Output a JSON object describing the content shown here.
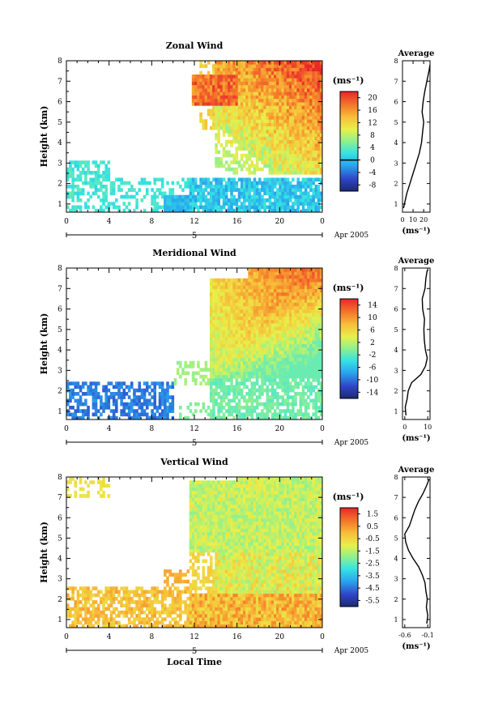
{
  "chart_data": [
    {
      "type": "heatmap",
      "title": "Zonal Wind",
      "ylabel": "Height (km)",
      "xlabel": "",
      "units": "(ms⁻¹)",
      "xlim": [
        0,
        24
      ],
      "ylim": [
        0.6,
        8
      ],
      "xticks": [
        "0",
        "4",
        "8",
        "12",
        "16",
        "20",
        "0"
      ],
      "yticks": [
        "1",
        "2",
        "3",
        "4",
        "5",
        "6",
        "7",
        "8"
      ],
      "date_axis": {
        "day": "5",
        "month_year": "Apr 2005"
      },
      "colorbar": {
        "labels": [
          "20",
          "16",
          "12",
          "8",
          "4",
          "0",
          "-4",
          "-8"
        ],
        "zero_line": "0",
        "range": [
          -10,
          22
        ]
      },
      "average_profile": {
        "title": "Average",
        "xlabel": "(ms⁻¹)",
        "xticks": [
          "0",
          "10",
          "20"
        ],
        "xlim": [
          0,
          26
        ],
        "yticks": [
          "1",
          "2",
          "3",
          "4",
          "5",
          "6",
          "7",
          "8"
        ],
        "heights": [
          0.8,
          1.5,
          2.0,
          2.5,
          3.0,
          3.5,
          4.0,
          4.5,
          5.0,
          5.5,
          6.0,
          6.5,
          7.0,
          7.5,
          7.8
        ],
        "values": [
          1,
          4,
          7,
          10,
          13,
          16,
          18,
          19,
          20,
          18.5,
          19.5,
          21,
          23,
          25,
          26
        ]
      }
    },
    {
      "type": "heatmap",
      "title": "Meridional Wind",
      "ylabel": "Height (km)",
      "xlabel": "",
      "units": "(ms⁻¹)",
      "xlim": [
        0,
        24
      ],
      "ylim": [
        0.6,
        8
      ],
      "xticks": [
        "0",
        "4",
        "8",
        "12",
        "16",
        "20",
        "0"
      ],
      "yticks": [
        "1",
        "2",
        "3",
        "4",
        "5",
        "6",
        "7",
        "8"
      ],
      "date_axis": {
        "day": "5",
        "month_year": "Apr 2005"
      },
      "colorbar": {
        "labels": [
          "14",
          "10",
          "6",
          "2",
          "-2",
          "-6",
          "-10",
          "-14"
        ],
        "zero_line": "0",
        "range": [
          -16,
          17
        ]
      },
      "average_profile": {
        "title": "Average",
        "xlabel": "(ms⁻¹)",
        "xticks": [
          "0",
          "10"
        ],
        "xlim": [
          -1,
          11
        ],
        "yticks": [
          "1",
          "2",
          "3",
          "4",
          "5",
          "6",
          "7",
          "8"
        ],
        "heights": [
          0.8,
          1.2,
          1.6,
          2.0,
          2.4,
          2.8,
          3.2,
          3.6,
          4.0,
          4.5,
          5.0,
          5.5,
          6.0,
          6.5,
          7.0,
          7.5,
          7.9
        ],
        "values": [
          0.5,
          0.2,
          1.0,
          1.5,
          3.0,
          7.0,
          9.0,
          9.8,
          9.0,
          8.5,
          8.3,
          8.6,
          7.8,
          7.6,
          8.8,
          9.2,
          9.8
        ]
      }
    },
    {
      "type": "heatmap",
      "title": "Vertical Wind",
      "ylabel": "Height (km)",
      "xlabel": "Local Time",
      "units": "(ms⁻¹)",
      "xlim": [
        0,
        24
      ],
      "ylim": [
        0.6,
        8
      ],
      "xticks": [
        "0",
        "4",
        "8",
        "12",
        "16",
        "20",
        "0"
      ],
      "yticks": [
        "1",
        "2",
        "3",
        "4",
        "5",
        "6",
        "7",
        "8"
      ],
      "date_axis": {
        "day": "5",
        "month_year": "Apr 2005"
      },
      "colorbar": {
        "labels": [
          "1.5",
          "0.5",
          "-0.5",
          "-1.5",
          "-2.5",
          "-3.5",
          "-4.5",
          "-5.5"
        ],
        "zero_line": "",
        "range": [
          -6,
          2
        ]
      },
      "average_profile": {
        "title": "Average",
        "xlabel": "(ms⁻¹)",
        "xticks": [
          "-0.6",
          "-0.1"
        ],
        "xlim": [
          -0.65,
          -0.05
        ],
        "yticks": [
          "1",
          "2",
          "3",
          "4",
          "5",
          "6",
          "7",
          "8"
        ],
        "heights": [
          0.8,
          1.2,
          1.6,
          2.0,
          2.4,
          2.8,
          3.2,
          3.6,
          4.0,
          4.4,
          4.8,
          5.2,
          5.6,
          6.0,
          6.4,
          6.8,
          7.2,
          7.6,
          7.9
        ],
        "values": [
          -0.12,
          -0.1,
          -0.13,
          -0.11,
          -0.14,
          -0.16,
          -0.22,
          -0.3,
          -0.42,
          -0.52,
          -0.58,
          -0.6,
          -0.5,
          -0.44,
          -0.38,
          -0.3,
          -0.2,
          -0.12,
          -0.07
        ]
      }
    }
  ]
}
